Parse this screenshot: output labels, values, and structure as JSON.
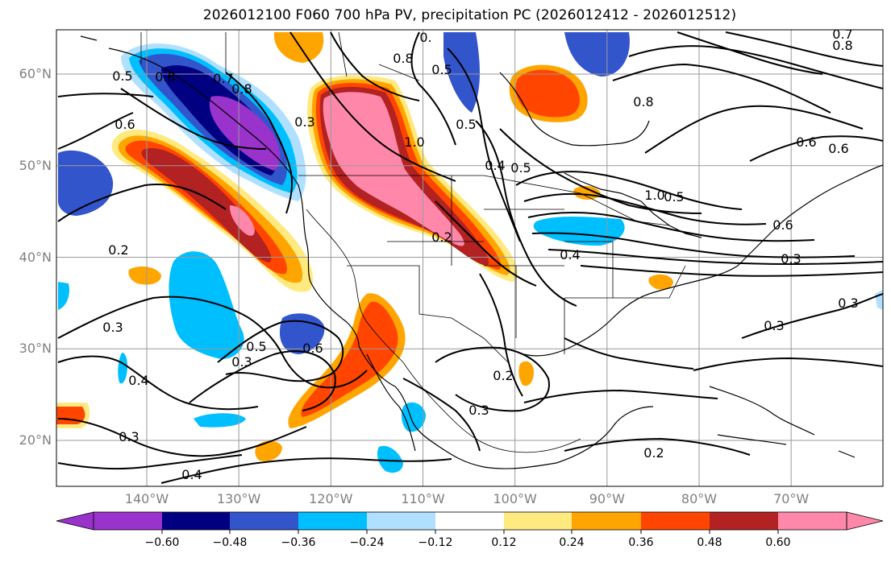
{
  "title": "2026012100 F060 700 hPa PV, precipitation PC (2026012412 - 2026012512)",
  "lat_labels": [
    {
      "text": "60°N",
      "lat": 60
    },
    {
      "text": "50°N",
      "lat": 50
    },
    {
      "text": "40°N",
      "lat": 40
    },
    {
      "text": "30°N",
      "lat": 30
    },
    {
      "text": "20°N",
      "lat": 20
    }
  ],
  "lon_labels": [
    {
      "text": "140°W",
      "lon": -140
    },
    {
      "text": "130°W",
      "lon": -130
    },
    {
      "text": "120°W",
      "lon": -120
    },
    {
      "text": "110°W",
      "lon": -110
    },
    {
      "text": "100°W",
      "lon": -100
    },
    {
      "text": "90°W",
      "lon": -90
    },
    {
      "text": "80°W",
      "lon": -80
    },
    {
      "text": "70°W",
      "lon": -70
    }
  ],
  "colorbar": {
    "ticks": [
      "−0.60",
      "−0.48",
      "−0.36",
      "−0.24",
      "−0.12",
      "0.12",
      "0.24",
      "0.36",
      "0.48",
      "0.60"
    ],
    "colors": [
      "#9933cc",
      "#000080",
      "#3355cc",
      "#00bfff",
      "#b0e0ff",
      "#ffffff",
      "#ffea80",
      "#ffa500",
      "#ff4500",
      "#b22222",
      "#ff88aa"
    ]
  },
  "contour_labels": [
    "0.",
    "0.8",
    "0.5",
    "0.6",
    "0.7",
    "0.8",
    "0.5",
    "0.6",
    "0.3",
    "1.0",
    "0.5",
    "0.4",
    "0.5",
    "0.8",
    "0.6",
    "0.5",
    "1.0",
    "0.6",
    "0.4",
    "0.3",
    "0.2",
    "0.3",
    "0.4",
    "0.3",
    "0.4",
    "0.5",
    "0.6",
    "0.3",
    "0.2",
    "0.3",
    "0.2",
    "0.2",
    "0.3",
    "0.3",
    "0.6",
    "0.7",
    "0.8"
  ]
}
